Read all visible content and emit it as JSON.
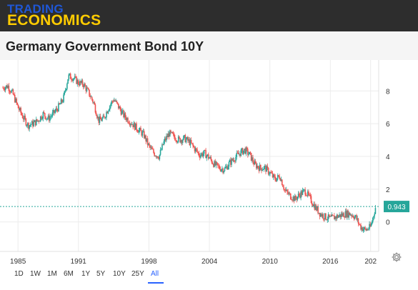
{
  "brand": {
    "line1": "TRADING",
    "line2": "ECONOMICS"
  },
  "title": "Germany Government Bond 10Y",
  "current_value_label": "0.943",
  "colors": {
    "up": "#26a69a",
    "down": "#ef5350",
    "price_line": "#26a69a",
    "price_label_bg": "#26a69a",
    "active_range": "#2962ff",
    "topbar": "#2d2d2d",
    "brand_line1": "#1f57d6",
    "brand_line2": "#ffcc00"
  },
  "icons": {
    "settings": "gear-icon"
  },
  "ranges": {
    "items": [
      "1D",
      "1W",
      "1M",
      "6M",
      "1Y",
      "5Y",
      "10Y",
      "25Y",
      "All"
    ],
    "active": "All"
  },
  "chart_data": {
    "type": "line",
    "title": "Germany Government Bond 10Y",
    "xlabel": "",
    "ylabel": "",
    "x_ticks": [
      "1985",
      "1991",
      "1998",
      "2004",
      "2010",
      "2016",
      "202"
    ],
    "y_ticks": [
      0,
      2,
      4,
      6,
      8
    ],
    "xlim": [
      1983.5,
      2020.8
    ],
    "ylim": [
      -1.8,
      9.8
    ],
    "grid": true,
    "current_value": 0.943,
    "series": [
      {
        "x": [
          1983.5,
          1984.0,
          1984.5,
          1985.0,
          1985.5,
          1986.0,
          1986.5,
          1987.0,
          1987.5,
          1988.0,
          1988.5,
          1989.0,
          1989.5,
          1990.0,
          1990.5,
          1991.0,
          1991.5,
          1992.0,
          1992.5,
          1993.0,
          1993.5,
          1994.0,
          1994.5,
          1995.0,
          1995.5,
          1996.0,
          1996.5,
          1997.0,
          1997.5,
          1998.0,
          1998.5,
          1999.0,
          1999.5,
          2000.0,
          2000.5,
          2001.0,
          2001.5,
          2002.0,
          2002.5,
          2003.0,
          2003.5,
          2004.0,
          2004.5,
          2005.0,
          2005.5,
          2006.0,
          2006.5,
          2007.0,
          2007.5,
          2008.0,
          2008.5,
          2009.0,
          2009.5,
          2010.0,
          2010.5,
          2011.0,
          2011.5,
          2012.0,
          2012.5,
          2013.0,
          2013.5,
          2014.0,
          2014.5,
          2015.0,
          2015.5,
          2016.0,
          2016.5,
          2017.0,
          2017.5,
          2018.0,
          2018.5,
          2019.0,
          2019.5,
          2020.0,
          2020.5
        ],
        "y": [
          8.2,
          8.3,
          7.8,
          7.0,
          6.4,
          5.9,
          6.0,
          6.2,
          6.6,
          6.3,
          6.6,
          7.0,
          7.5,
          8.9,
          8.8,
          8.5,
          8.4,
          7.9,
          7.3,
          6.2,
          6.3,
          7.0,
          7.5,
          7.0,
          6.5,
          6.2,
          5.9,
          5.6,
          5.3,
          4.6,
          4.2,
          4.0,
          4.9,
          5.4,
          5.2,
          5.0,
          5.1,
          4.9,
          4.5,
          4.1,
          4.2,
          3.9,
          3.5,
          3.3,
          3.2,
          3.6,
          3.9,
          4.2,
          4.4,
          4.1,
          3.5,
          3.3,
          3.3,
          3.0,
          2.6,
          2.8,
          1.9,
          1.6,
          1.4,
          1.7,
          1.9,
          1.4,
          0.9,
          0.5,
          0.3,
          0.2,
          0.3,
          0.4,
          0.5,
          0.5,
          0.3,
          -0.3,
          -0.5,
          -0.3,
          0.94
        ]
      }
    ]
  }
}
